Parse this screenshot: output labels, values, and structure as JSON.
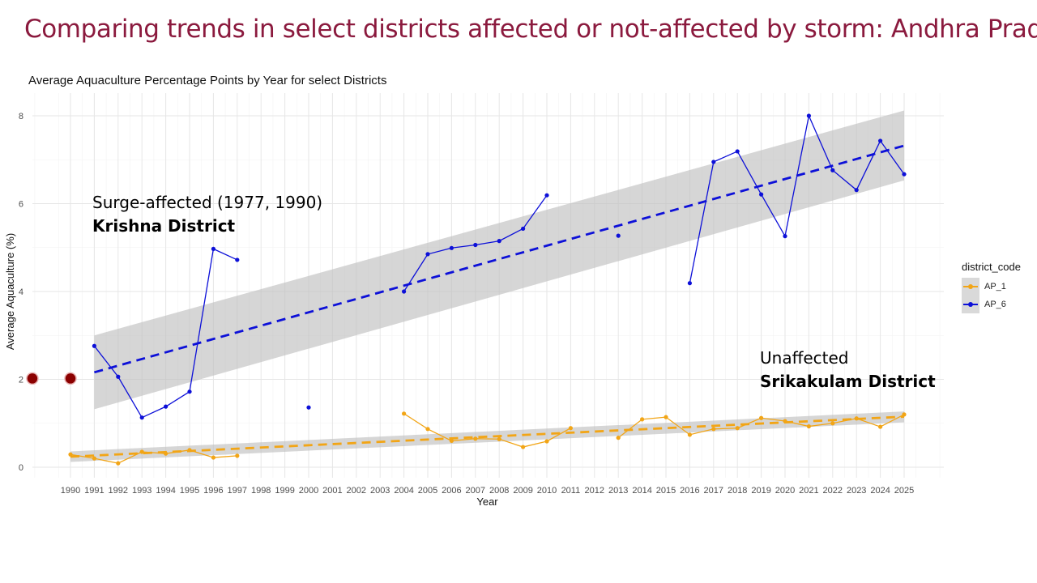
{
  "slide_title": "Comparing trends in select districts affected or not-affected by storm: Andhra Pradesh",
  "annotations": {
    "affected_line1": "Surge-affected (1977, 1990)",
    "affected_line2": "Krishna District",
    "unaffected_line1": "Unaffected",
    "unaffected_line2": "Srikakulam District"
  },
  "colors": {
    "ap1": "#f2a516",
    "ap6": "#0d10d8",
    "ribbon": "#bdbdbd",
    "marker": "#8b0000",
    "title": "#8b1a3e"
  },
  "chart_data": {
    "type": "line",
    "title": "Average Aquaculture Percentage Points by Year for select Districts",
    "xlabel": "Year",
    "ylabel": "Average Aquaculture (%)",
    "xlim": [
      1990,
      2025
    ],
    "ylim": [
      0,
      8
    ],
    "x_ticks": [
      1990,
      1991,
      1992,
      1993,
      1994,
      1995,
      1996,
      1997,
      1998,
      1999,
      2000,
      2001,
      2002,
      2003,
      2004,
      2005,
      2006,
      2007,
      2008,
      2009,
      2010,
      2011,
      2012,
      2013,
      2014,
      2015,
      2016,
      2017,
      2018,
      2019,
      2020,
      2021,
      2022,
      2023,
      2024,
      2025
    ],
    "y_ticks": [
      0,
      2,
      4,
      6,
      8
    ],
    "legend_title": "district_code",
    "legend_position": "right",
    "grid": true,
    "series": [
      {
        "name": "AP_1",
        "color": "#f2a516",
        "points": [
          [
            1990,
            0.29
          ],
          [
            1991,
            0.2
          ],
          [
            1992,
            0.09
          ],
          [
            1993,
            0.35
          ],
          [
            1994,
            0.31
          ],
          [
            1995,
            0.39
          ],
          [
            1996,
            0.22
          ],
          [
            1997,
            0.26
          ],
          [
            2004,
            1.22
          ],
          [
            2005,
            0.87
          ],
          [
            2006,
            0.6
          ],
          [
            2007,
            0.65
          ],
          [
            2008,
            0.64
          ],
          [
            2009,
            0.46
          ],
          [
            2010,
            0.59
          ],
          [
            2011,
            0.89
          ],
          [
            2013,
            0.67
          ],
          [
            2014,
            1.09
          ],
          [
            2015,
            1.14
          ],
          [
            2016,
            0.74
          ],
          [
            2017,
            0.87
          ],
          [
            2018,
            0.89
          ],
          [
            2019,
            1.12
          ],
          [
            2020,
            1.05
          ],
          [
            2021,
            0.93
          ],
          [
            2022,
            1.0
          ],
          [
            2023,
            1.11
          ],
          [
            2024,
            0.92
          ],
          [
            2025,
            1.2
          ]
        ],
        "trend": {
          "x": [
            1990,
            2025
          ],
          "y": [
            0.24,
            1.15
          ]
        },
        "ribbon": {
          "lower": [
            0.12,
            1.02
          ],
          "upper": [
            0.36,
            1.27
          ]
        }
      },
      {
        "name": "AP_6",
        "color": "#0d10d8",
        "points": [
          [
            1991,
            2.76
          ],
          [
            1992,
            2.06
          ],
          [
            1993,
            1.13
          ],
          [
            1994,
            1.38
          ],
          [
            1995,
            1.72
          ],
          [
            1996,
            4.97
          ],
          [
            1997,
            4.72
          ],
          [
            2000,
            1.36
          ],
          [
            2004,
            4.0
          ],
          [
            2005,
            4.85
          ],
          [
            2006,
            4.99
          ],
          [
            2007,
            5.06
          ],
          [
            2008,
            5.15
          ],
          [
            2009,
            5.43
          ],
          [
            2010,
            6.19
          ],
          [
            2013,
            5.27
          ],
          [
            2016,
            4.19
          ],
          [
            2017,
            6.95
          ],
          [
            2018,
            7.19
          ],
          [
            2019,
            6.21
          ],
          [
            2020,
            5.26
          ],
          [
            2021,
            8.0
          ],
          [
            2022,
            6.76
          ],
          [
            2023,
            6.31
          ],
          [
            2024,
            7.43
          ],
          [
            2025,
            6.67
          ]
        ],
        "trend": {
          "x": [
            1991,
            2025
          ],
          "y": [
            2.16,
            7.32
          ]
        },
        "ribbon": {
          "lower": [
            1.32,
            6.53
          ],
          "upper": [
            3.0,
            8.12
          ]
        }
      }
    ],
    "highlight_points": [
      [
        1988.4,
        2.02
      ],
      [
        1990,
        2.02
      ]
    ]
  }
}
